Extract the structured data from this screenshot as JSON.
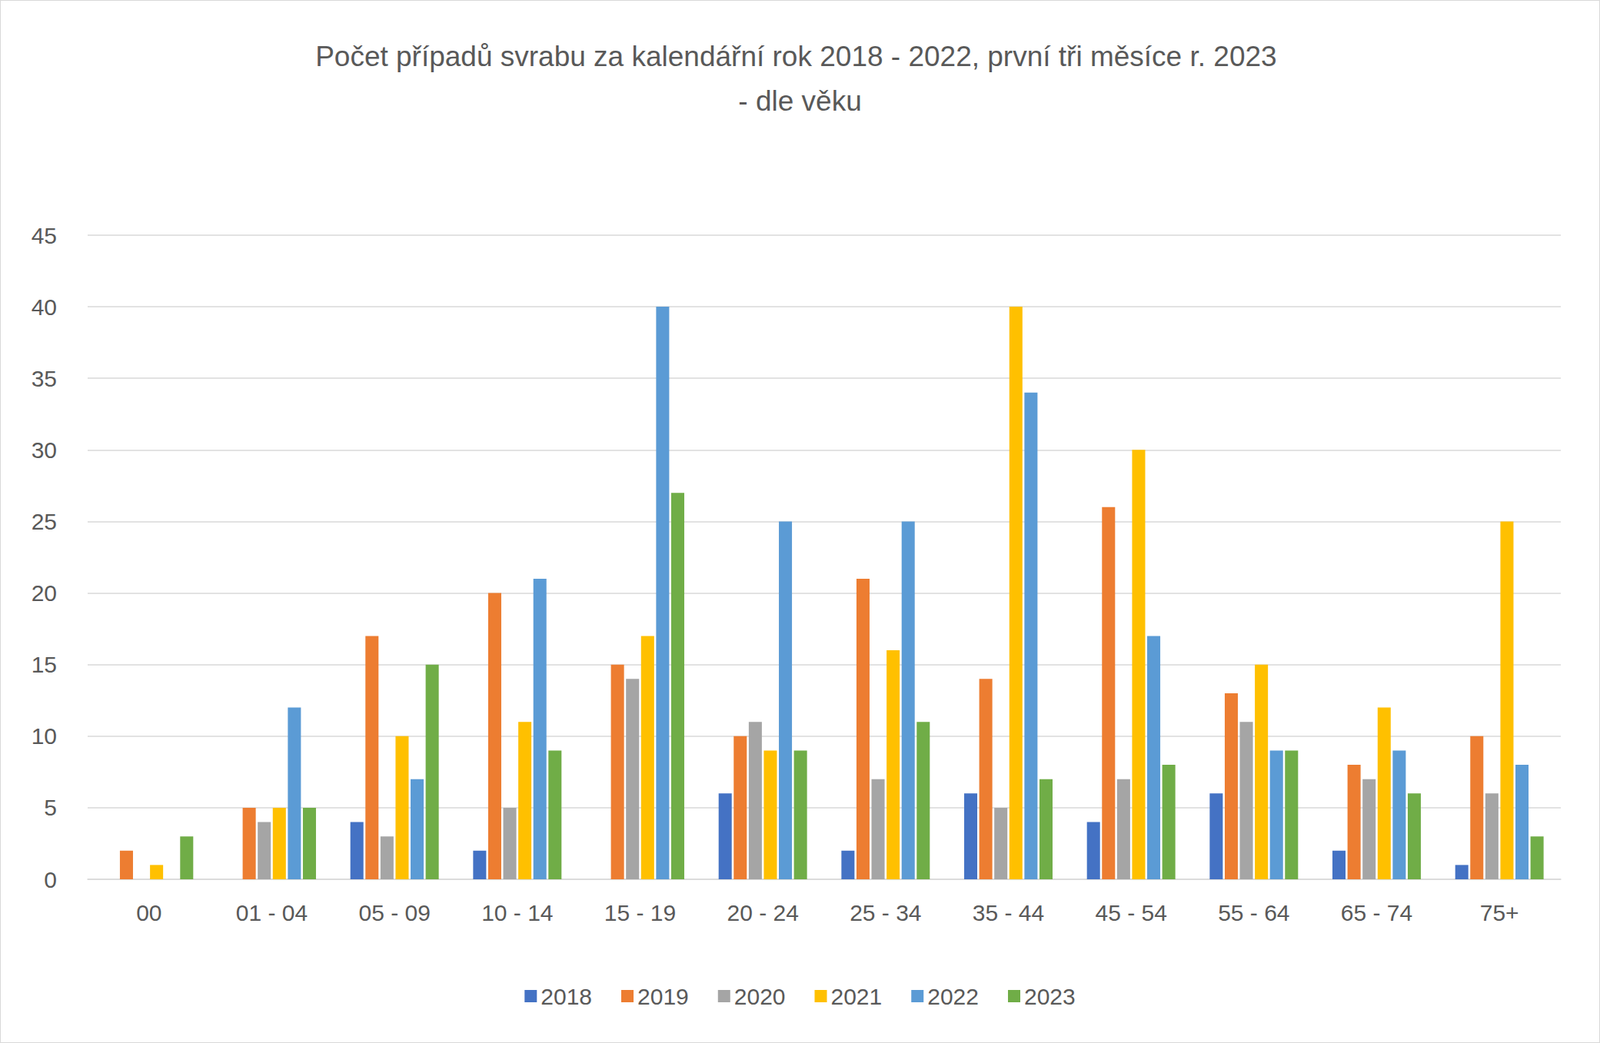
{
  "chart_data": {
    "type": "bar",
    "title": "Počet případů svrabu za kalendářní rok 2018 - 2022, první tři měsíce r. 2023 - dle věku",
    "categories": [
      "00",
      "01 - 04",
      "05 - 09",
      "10 - 14",
      "15 - 19",
      "20 - 24",
      "25 - 34",
      "35 - 44",
      "45 - 54",
      "55 - 64",
      "65 - 74",
      "75+"
    ],
    "series": [
      {
        "name": "2018",
        "color": "#4472c4",
        "values": [
          null,
          null,
          4,
          2,
          null,
          6,
          2,
          6,
          4,
          6,
          2,
          1
        ]
      },
      {
        "name": "2019",
        "color": "#ed7d31",
        "values": [
          2,
          5,
          17,
          20,
          15,
          10,
          21,
          14,
          26,
          13,
          8,
          10
        ]
      },
      {
        "name": "2020",
        "color": "#a5a5a5",
        "values": [
          null,
          4,
          3,
          5,
          14,
          11,
          7,
          5,
          7,
          11,
          7,
          6
        ]
      },
      {
        "name": "2021",
        "color": "#ffc000",
        "values": [
          1,
          5,
          10,
          11,
          17,
          9,
          16,
          40,
          30,
          15,
          12,
          25
        ]
      },
      {
        "name": "2022",
        "color": "#5b9bd5",
        "values": [
          null,
          12,
          7,
          21,
          40,
          25,
          25,
          34,
          17,
          9,
          9,
          8
        ]
      },
      {
        "name": "2023",
        "color": "#70ad47",
        "values": [
          3,
          5,
          15,
          9,
          27,
          9,
          11,
          7,
          8,
          9,
          6,
          3
        ]
      }
    ],
    "ylim": [
      0,
      45
    ],
    "yticks": [
      0,
      5,
      10,
      15,
      20,
      25,
      30,
      35,
      40,
      45
    ],
    "grid": true,
    "legend": "bottom"
  }
}
